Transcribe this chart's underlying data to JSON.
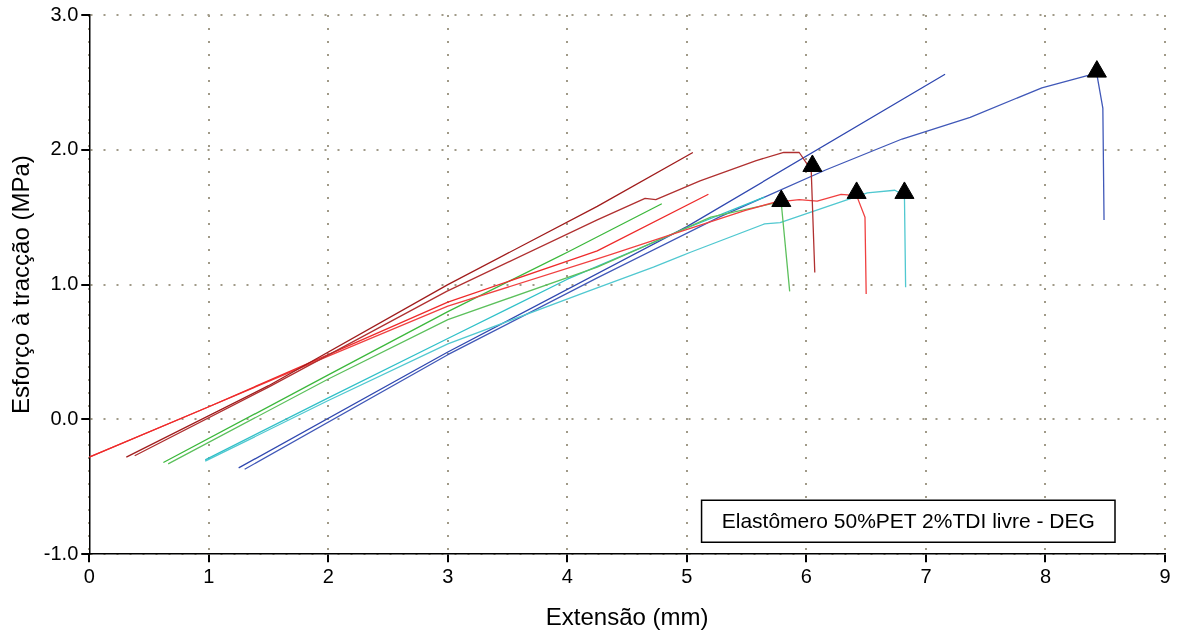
{
  "chart_data": {
    "type": "line",
    "xlabel": "Extensão (mm)",
    "ylabel": "Esforço à tracção (MPa)",
    "xlim": [
      0,
      9
    ],
    "xticks": [
      0,
      1,
      2,
      3,
      4,
      5,
      6,
      7,
      8,
      9
    ],
    "ylim": [
      -1,
      3
    ],
    "yticks": [
      {
        "value": -1,
        "label": "-1.0"
      },
      {
        "value": 0,
        "label": "0.0"
      },
      {
        "value": 1,
        "label": "1.0"
      },
      {
        "value": 2,
        "label": "2.0"
      },
      {
        "value": 3,
        "label": "3.0"
      }
    ],
    "grid": true,
    "legend": false,
    "marker": "none",
    "line_style": "solid",
    "annotations": [
      "Elastômero 50%PET 2%TDI livre - DEG"
    ],
    "series": [
      {
        "color": "#a01c1c",
        "x": [
          0.31,
          1.5,
          3.0,
          4.25,
          5.05
        ],
        "values": [
          -0.28,
          0.25,
          1.0,
          1.58,
          1.98
        ]
      },
      {
        "color": "#b03030",
        "x": [
          0.38,
          1.5,
          2.99,
          4.25,
          4.65,
          4.74,
          5.11,
          5.58,
          5.81,
          5.94,
          6.04,
          6.07
        ],
        "values": [
          -0.27,
          0.24,
          0.95,
          1.48,
          1.64,
          1.63,
          1.77,
          1.92,
          1.98,
          1.98,
          1.85,
          1.09
        ]
      },
      {
        "color": "#ee2a2a",
        "x": [
          0.0,
          0.99,
          2.0,
          3.0,
          4.25,
          5.18
        ],
        "values": [
          -0.28,
          0.09,
          0.48,
          0.87,
          1.25,
          1.67
        ]
      },
      {
        "color": "#f04040",
        "x": [
          0.0,
          0.99,
          2.0,
          3.0,
          4.25,
          4.9,
          5.49,
          5.73,
          5.94,
          6.09,
          6.29,
          6.42,
          6.49,
          6.5
        ],
        "values": [
          -0.28,
          0.09,
          0.47,
          0.84,
          1.19,
          1.38,
          1.55,
          1.61,
          1.63,
          1.62,
          1.67,
          1.66,
          1.5,
          0.93
        ]
      },
      {
        "color": "#3cb83c",
        "x": [
          0.62,
          2.0,
          3.0,
          4.0,
          4.79
        ],
        "values": [
          -0.32,
          0.33,
          0.8,
          1.24,
          1.6
        ]
      },
      {
        "color": "#5cc05c",
        "x": [
          0.66,
          2.0,
          3.0,
          4.25,
          5.2,
          5.71,
          5.79,
          5.86
        ],
        "values": [
          -0.33,
          0.3,
          0.74,
          1.13,
          1.5,
          1.6,
          1.6,
          0.95
        ]
      },
      {
        "color": "#30c0c8",
        "x": [
          0.97,
          2.0,
          3.0,
          4.0,
          5.0,
          5.65
        ],
        "values": [
          -0.3,
          0.16,
          0.6,
          1.04,
          1.42,
          1.65
        ]
      },
      {
        "color": "#50c8d0",
        "x": [
          0.97,
          2.0,
          3.0,
          4.17,
          4.72,
          5.03,
          5.65,
          5.78,
          6.51,
          6.74,
          6.82,
          6.83
        ],
        "values": [
          -0.31,
          0.14,
          0.56,
          0.95,
          1.13,
          1.24,
          1.45,
          1.46,
          1.68,
          1.7,
          1.66,
          0.98
        ]
      },
      {
        "color": "#3048b0",
        "x": [
          1.25,
          3.0,
          5.0,
          7.16
        ],
        "values": [
          -0.36,
          0.5,
          1.43,
          2.56
        ]
      },
      {
        "color": "#4058b8",
        "x": [
          1.3,
          3.0,
          4.25,
          5.27,
          6.16,
          6.8,
          7.37,
          7.97,
          8.35,
          8.43,
          8.48,
          8.49
        ],
        "values": [
          -0.37,
          0.48,
          1.05,
          1.5,
          1.85,
          2.08,
          2.24,
          2.46,
          2.55,
          2.56,
          2.31,
          1.48
        ]
      },
      {
        "type": "scatter",
        "marker": "triangle",
        "color": "#000000",
        "x": [
          5.79,
          6.05,
          6.42,
          6.82,
          8.43
        ],
        "values": [
          1.62,
          1.88,
          1.68,
          1.68,
          2.58
        ]
      }
    ]
  }
}
